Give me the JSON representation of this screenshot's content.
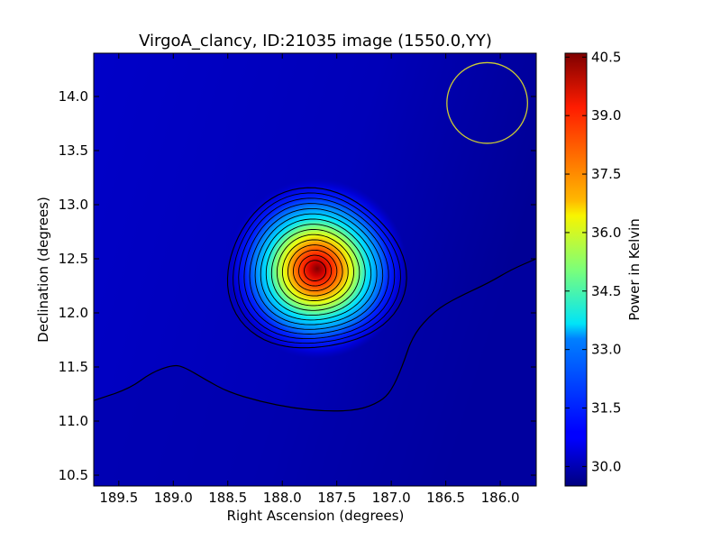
{
  "chart_data": {
    "type": "heatmap",
    "title": "VirgoA_clancy, ID:21035 image (1550.0,YY)",
    "xlabel": "Right Ascension (degrees)",
    "ylabel": "Declination (degrees)",
    "colorbar_label": "Power in Kelvin",
    "xlim": [
      189.73,
      185.67
    ],
    "ylim": [
      10.4,
      14.4
    ],
    "x_inverted": true,
    "xticks": [
      189.5,
      189.0,
      188.5,
      188.0,
      187.5,
      187.0,
      186.5,
      186.0
    ],
    "xtick_labels": [
      "189.5",
      "189.0",
      "188.5",
      "188.0",
      "187.5",
      "187.0",
      "186.5",
      "186.0"
    ],
    "yticks": [
      10.5,
      11.0,
      11.5,
      12.0,
      12.5,
      13.0,
      13.5,
      14.0
    ],
    "ytick_labels": [
      "10.5",
      "11.0",
      "11.5",
      "12.0",
      "12.5",
      "13.0",
      "13.5",
      "14.0"
    ],
    "colorbar_range": [
      29.5,
      40.6
    ],
    "colorbar_ticks": [
      30.0,
      31.5,
      33.0,
      34.5,
      36.0,
      37.5,
      39.0,
      40.5
    ],
    "colorbar_tick_labels": [
      "30.0",
      "31.5",
      "33.0",
      "34.5",
      "36.0",
      "37.5",
      "39.0",
      "40.5"
    ],
    "colormap": "jet",
    "source": {
      "ra": 187.7,
      "dec": 12.39,
      "peak": 40.5,
      "base": 29.5
    },
    "beam_circle": {
      "ra": 186.12,
      "dec": 13.94,
      "radius_deg": 0.37,
      "color": "#cccc33"
    },
    "contour_line_color": "#000000",
    "low_contour": [
      [
        189.73,
        11.19
      ],
      [
        189.4,
        11.3
      ],
      [
        189.2,
        11.45
      ],
      [
        189.0,
        11.52
      ],
      [
        188.9,
        11.5
      ],
      [
        188.7,
        11.38
      ],
      [
        188.5,
        11.27
      ],
      [
        188.2,
        11.18
      ],
      [
        187.9,
        11.12
      ],
      [
        187.6,
        11.09
      ],
      [
        187.3,
        11.1
      ],
      [
        187.1,
        11.18
      ],
      [
        187.0,
        11.28
      ],
      [
        186.9,
        11.5
      ],
      [
        186.8,
        11.8
      ],
      [
        186.6,
        12.02
      ],
      [
        186.4,
        12.14
      ],
      [
        186.1,
        12.28
      ],
      [
        185.9,
        12.4
      ],
      [
        185.67,
        12.5
      ]
    ]
  }
}
